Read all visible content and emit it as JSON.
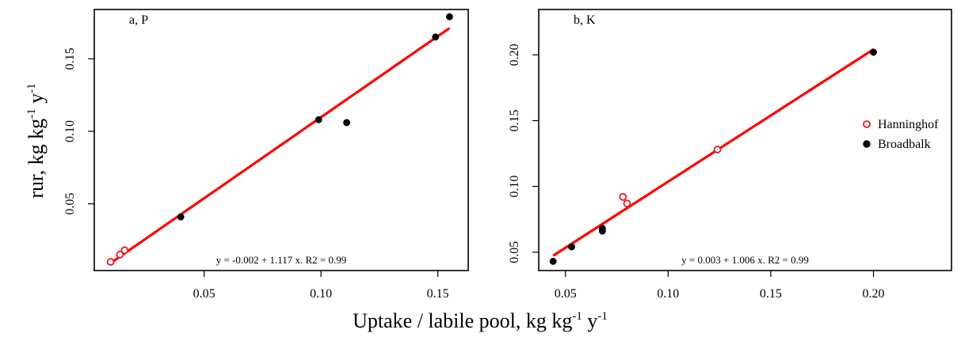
{
  "figure": {
    "ylabel": {
      "text": "rur, kg kg",
      "sup1": "-1",
      "mid": " y",
      "sup2": "-1"
    },
    "xlabel": {
      "text": "Uptake / labile pool, kg kg",
      "sup1": "-1",
      "mid": " y",
      "sup2": "-1"
    }
  },
  "chart_data": [
    {
      "type": "scatter",
      "panel_label": "a, P",
      "xlim": [
        0.003,
        0.163
      ],
      "ylim": [
        0.004,
        0.184
      ],
      "xticks": [
        0.05,
        0.1,
        0.15
      ],
      "xtick_labels": [
        "0.05",
        "0.10",
        "0.15"
      ],
      "yticks": [
        0.05,
        0.1,
        0.15
      ],
      "ytick_labels": [
        "0.05",
        "0.10",
        "0.15"
      ],
      "grid": false,
      "series": [
        {
          "name": "Hanninghof",
          "marker": "open-circle",
          "color": "#e41a1c",
          "x": [
            0.01,
            0.014,
            0.016
          ],
          "y": [
            0.01,
            0.015,
            0.018
          ]
        },
        {
          "name": "Broadbalk",
          "marker": "filled-circle",
          "color": "#000000",
          "x": [
            0.04,
            0.099,
            0.111,
            0.149,
            0.155
          ],
          "y": [
            0.041,
            0.108,
            0.106,
            0.165,
            0.179
          ]
        }
      ],
      "fit": {
        "intercept": -0.002,
        "slope": 1.117,
        "x_range": [
          0.01,
          0.155
        ],
        "color": "#ff0000"
      },
      "equation": "y = -0.002 + 1.117 x. R2 = 0.99"
    },
    {
      "type": "scatter",
      "panel_label": "b, K",
      "xlim": [
        0.037,
        0.238
      ],
      "ylim": [
        0.036,
        0.2345
      ],
      "xticks": [
        0.05,
        0.1,
        0.15,
        0.2
      ],
      "xtick_labels": [
        "0.05",
        "0.10",
        "0.15",
        "0.20"
      ],
      "yticks": [
        0.05,
        0.1,
        0.15,
        0.2
      ],
      "ytick_labels": [
        "0.05",
        "0.10",
        "0.15",
        "0.20"
      ],
      "grid": false,
      "legend": {
        "position": "right",
        "entries": [
          {
            "name": "Hanninghof",
            "marker": "open-circle",
            "color": "#e41a1c"
          },
          {
            "name": "Broadbalk",
            "marker": "filled-circle",
            "color": "#000000"
          }
        ]
      },
      "series": [
        {
          "name": "Hanninghof",
          "marker": "open-circle",
          "color": "#e41a1c",
          "x": [
            0.078,
            0.08,
            0.124
          ],
          "y": [
            0.092,
            0.087,
            0.128
          ]
        },
        {
          "name": "Broadbalk",
          "marker": "filled-circle",
          "color": "#000000",
          "x": [
            0.044,
            0.053,
            0.068,
            0.068,
            0.2
          ],
          "y": [
            0.043,
            0.054,
            0.066,
            0.068,
            0.202
          ]
        }
      ],
      "fit": {
        "intercept": 0.003,
        "slope": 1.006,
        "x_range": [
          0.044,
          0.2
        ],
        "color": "#ff0000"
      },
      "equation": "y = 0.003 + 1.006 x. R2 = 0.99"
    }
  ]
}
